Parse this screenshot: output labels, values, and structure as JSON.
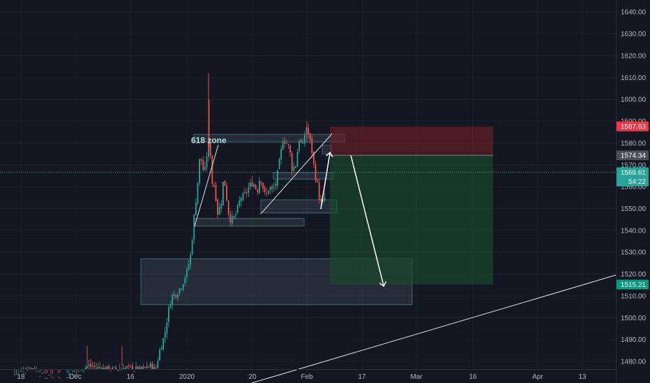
{
  "chart_data": {
    "type": "candlestick",
    "instrument_note": "",
    "y_axis": {
      "ticks": [
        1480,
        1490,
        1500,
        1510,
        1520,
        1530,
        1540,
        1550,
        1560,
        1570,
        1580,
        1590,
        1600,
        1610,
        1620,
        1630,
        1640
      ],
      "tick_labels": [
        "1480.00",
        "1490.00",
        "1500.00",
        "1510.00",
        "1520.00",
        "1530.00",
        "1540.00",
        "1550.00",
        "1560.00",
        "1570.00",
        "1580.00",
        "1590.00",
        "1600.00",
        "1610.00",
        "1620.00",
        "1630.00",
        "1640.00"
      ],
      "range": [
        1476.5,
        1645.5
      ]
    },
    "x_axis": {
      "tick_labels": [
        "18",
        "Dec",
        "16",
        "2020",
        "20",
        "Feb",
        "17",
        "Mar",
        "16",
        "Apr",
        "13"
      ],
      "range_bars": [
        0,
        200
      ]
    },
    "price_tags": [
      {
        "label": "1587.63",
        "value": 1587.63,
        "color": "#f23645",
        "text_color": "#ffffff"
      },
      {
        "label": "1574.34",
        "value": 1574.34,
        "color": "#4a4e5a",
        "text_color": "#ffffff"
      },
      {
        "label": "1566.61",
        "value": 1566.61,
        "color": "#26a69a",
        "text_color": "#ffffff"
      },
      {
        "label": "54:22",
        "value": 1562.4,
        "color": "#26a69a",
        "text_color": "#ffffff"
      },
      {
        "label": "1515.21",
        "value": 1515.21,
        "color": "#089981",
        "text_color": "#ffffff"
      }
    ],
    "current_price": 1566.61,
    "position": {
      "type": "short",
      "entry": 1574.34,
      "stop": 1587.63,
      "target": 1515.21,
      "stop_color": "#7a1f27",
      "target_color": "#1b4d2c"
    },
    "annotations": [
      {
        "text": "618 zone",
        "value": 1582.5,
        "color": "#b2dfdb"
      }
    ],
    "zones": [
      {
        "name": "demand-zone-large",
        "from_bar": 81,
        "to_bar": 150,
        "low": 1506,
        "high": 1527
      },
      {
        "name": "zone-618",
        "from_bar": 117,
        "to_bar": 138,
        "low": 1580.5,
        "high": 1584
      },
      {
        "name": "zone-low",
        "from_bar": 93,
        "to_bar": 175,
        "low": 1542,
        "high": 1545.5
      },
      {
        "name": "zone-feb-support",
        "from_bar": 150,
        "to_bar": 195,
        "low": 1548,
        "high": 1554
      },
      {
        "name": "zone-right-mid",
        "from_bar": 163,
        "to_bar": 193,
        "low": 1563.5,
        "high": 1566.5
      },
      {
        "name": "zone-top-right",
        "from_bar": 187,
        "to_bar": 193,
        "low": 1575,
        "high": 1579
      }
    ],
    "colors": {
      "background": "#131722",
      "up": "#26a69a",
      "down": "#ef5350",
      "grid": "#1e222d",
      "axis_text": "#b2b5be",
      "dotted_price_line": "#26a69a"
    }
  }
}
